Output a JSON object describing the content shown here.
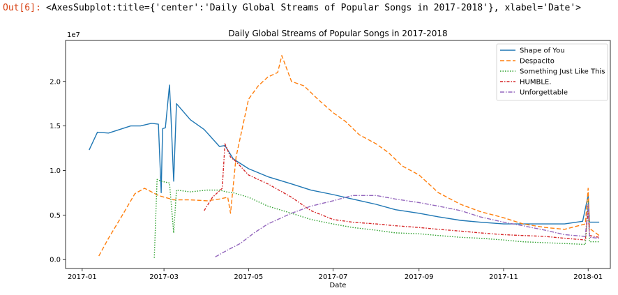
{
  "cell": {
    "prompt": "Out[6]:",
    "repr": "<AxesSubplot:title={'center':'Daily Global Streams of Popular Songs in 2017-2018'}, xlabel='Date'>"
  },
  "chart_data": {
    "type": "line",
    "title": "Daily Global Streams of Popular Songs in 2017-2018",
    "xlabel": "Date",
    "ylabel": "",
    "y_multiplier_label": "1e7",
    "x_range": [
      "2016-12-20",
      "2018-01-17"
    ],
    "ylim": [
      -0.1,
      2.46
    ],
    "y_ticks": [
      0.0,
      0.5,
      1.0,
      1.5,
      2.0
    ],
    "y_tick_labels": [
      "0.0",
      "0.5",
      "1.0",
      "1.5",
      "2.0"
    ],
    "x_ticks": [
      "2017-01-01",
      "2017-03-01",
      "2017-05-01",
      "2017-07-01",
      "2017-09-01",
      "2017-11-01",
      "2018-01-01"
    ],
    "x_tick_labels": [
      "2017-01",
      "2017-03",
      "2017-05",
      "2017-07",
      "2017-09",
      "2017-11",
      "2018-01"
    ],
    "grid": false,
    "legend_position": "top-right",
    "series": [
      {
        "name": "Shape of You",
        "color": "#1f77b4",
        "dash": "",
        "x": [
          "2017-01-06",
          "2017-01-12",
          "2017-01-20",
          "2017-01-28",
          "2017-02-05",
          "2017-02-12",
          "2017-02-20",
          "2017-02-25",
          "2017-02-27",
          "2017-02-28",
          "2017-03-02",
          "2017-03-05",
          "2017-03-06",
          "2017-03-08",
          "2017-03-10",
          "2017-03-20",
          "2017-03-30",
          "2017-04-10",
          "2017-04-14",
          "2017-04-20",
          "2017-05-01",
          "2017-05-15",
          "2017-06-01",
          "2017-06-15",
          "2017-07-01",
          "2017-07-15",
          "2017-08-01",
          "2017-08-15",
          "2017-09-01",
          "2017-09-15",
          "2017-10-01",
          "2017-10-15",
          "2017-11-01",
          "2017-11-15",
          "2017-12-01",
          "2017-12-15",
          "2017-12-28",
          "2018-01-01",
          "2018-01-02",
          "2018-01-09"
        ],
        "y": [
          1.23,
          1.43,
          1.42,
          1.46,
          1.5,
          1.5,
          1.53,
          1.52,
          0.75,
          1.47,
          1.48,
          1.96,
          1.63,
          0.88,
          1.75,
          1.57,
          1.46,
          1.27,
          1.28,
          1.13,
          1.02,
          0.93,
          0.85,
          0.78,
          0.73,
          0.68,
          0.62,
          0.56,
          0.52,
          0.48,
          0.44,
          0.42,
          0.4,
          0.4,
          0.4,
          0.4,
          0.43,
          0.72,
          0.42,
          0.42
        ]
      },
      {
        "name": "Despacito",
        "color": "#ff7f0e",
        "dash": "6,3",
        "x": [
          "2017-01-13",
          "2017-01-20",
          "2017-01-30",
          "2017-02-08",
          "2017-02-15",
          "2017-02-25",
          "2017-03-08",
          "2017-03-20",
          "2017-04-01",
          "2017-04-10",
          "2017-04-16",
          "2017-04-18",
          "2017-04-22",
          "2017-05-01",
          "2017-05-08",
          "2017-05-15",
          "2017-05-22",
          "2017-05-25",
          "2017-06-01",
          "2017-06-10",
          "2017-06-20",
          "2017-07-01",
          "2017-07-10",
          "2017-07-20",
          "2017-08-01",
          "2017-08-10",
          "2017-08-20",
          "2017-09-01",
          "2017-09-15",
          "2017-10-01",
          "2017-10-15",
          "2017-11-01",
          "2017-11-15",
          "2017-12-01",
          "2017-12-15",
          "2017-12-30",
          "2018-01-01",
          "2018-01-02",
          "2018-01-09"
        ],
        "y": [
          0.04,
          0.24,
          0.5,
          0.74,
          0.8,
          0.72,
          0.67,
          0.67,
          0.66,
          0.68,
          0.7,
          0.52,
          1.15,
          1.8,
          1.95,
          2.05,
          2.1,
          2.29,
          2.0,
          1.95,
          1.8,
          1.65,
          1.55,
          1.4,
          1.3,
          1.2,
          1.05,
          0.95,
          0.75,
          0.62,
          0.54,
          0.47,
          0.4,
          0.36,
          0.34,
          0.4,
          0.8,
          0.35,
          0.27
        ]
      },
      {
        "name": "Something Just Like This",
        "color": "#2ca02c",
        "dash": "1.5,2",
        "x": [
          "2017-02-22",
          "2017-02-24",
          "2017-02-27",
          "2017-03-05",
          "2017-03-08",
          "2017-03-10",
          "2017-03-20",
          "2017-04-01",
          "2017-04-10",
          "2017-04-15",
          "2017-04-20",
          "2017-05-01",
          "2017-05-15",
          "2017-06-01",
          "2017-06-15",
          "2017-07-01",
          "2017-07-15",
          "2017-08-01",
          "2017-08-15",
          "2017-09-01",
          "2017-09-15",
          "2017-10-01",
          "2017-10-15",
          "2017-11-01",
          "2017-11-15",
          "2017-12-01",
          "2017-12-15",
          "2017-12-30",
          "2018-01-01",
          "2018-01-02",
          "2018-01-09"
        ],
        "y": [
          0.02,
          0.9,
          0.88,
          0.86,
          0.3,
          0.78,
          0.76,
          0.78,
          0.78,
          0.76,
          0.75,
          0.7,
          0.6,
          0.52,
          0.45,
          0.4,
          0.36,
          0.33,
          0.3,
          0.29,
          0.27,
          0.25,
          0.24,
          0.22,
          0.2,
          0.19,
          0.18,
          0.17,
          0.65,
          0.2,
          0.2
        ]
      },
      {
        "name": "HUMBLE.",
        "color": "#d62728",
        "dash": "4,2,1.5,2",
        "x": [
          "2017-03-30",
          "2017-04-05",
          "2017-04-12",
          "2017-04-14",
          "2017-04-18",
          "2017-04-22",
          "2017-05-01",
          "2017-05-15",
          "2017-06-01",
          "2017-06-15",
          "2017-07-01",
          "2017-07-15",
          "2017-08-01",
          "2017-08-15",
          "2017-09-01",
          "2017-09-15",
          "2017-10-01",
          "2017-10-15",
          "2017-11-01",
          "2017-11-15",
          "2017-12-01",
          "2017-12-15",
          "2017-12-30",
          "2018-01-01",
          "2018-01-02",
          "2018-01-09"
        ],
        "y": [
          0.55,
          0.7,
          0.8,
          1.3,
          1.15,
          1.1,
          0.95,
          0.85,
          0.7,
          0.55,
          0.45,
          0.42,
          0.4,
          0.38,
          0.36,
          0.34,
          0.32,
          0.3,
          0.28,
          0.27,
          0.26,
          0.24,
          0.22,
          0.55,
          0.27,
          0.25
        ]
      },
      {
        "name": "Unforgettable",
        "color": "#9467bd",
        "dash": "6,2,1.5,2",
        "x": [
          "2017-04-07",
          "2017-04-15",
          "2017-04-25",
          "2017-05-05",
          "2017-05-15",
          "2017-06-01",
          "2017-06-15",
          "2017-07-01",
          "2017-07-15",
          "2017-08-01",
          "2017-08-15",
          "2017-09-01",
          "2017-09-15",
          "2017-10-01",
          "2017-10-15",
          "2017-11-01",
          "2017-11-15",
          "2017-12-01",
          "2017-12-15",
          "2017-12-30",
          "2018-01-01",
          "2018-01-02",
          "2018-01-09"
        ],
        "y": [
          0.03,
          0.1,
          0.18,
          0.3,
          0.4,
          0.52,
          0.6,
          0.66,
          0.72,
          0.72,
          0.68,
          0.64,
          0.6,
          0.55,
          0.48,
          0.42,
          0.38,
          0.33,
          0.28,
          0.26,
          0.62,
          0.25,
          0.24
        ]
      }
    ]
  }
}
